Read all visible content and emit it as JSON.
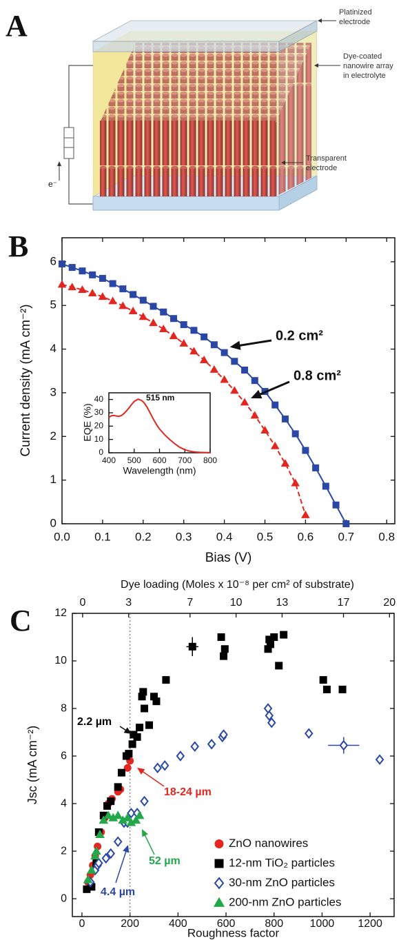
{
  "panel_a": {
    "label": "A",
    "callouts": [
      [
        "Platinized",
        "electrode"
      ],
      [
        "Dye-coated",
        "nanowire array",
        "in electrolyte"
      ],
      [
        "Transparent",
        "electrode"
      ]
    ],
    "electron": "e⁻"
  },
  "chart_data": [
    {
      "type": "line",
      "label": "B",
      "x_label": "Bias (V)",
      "y_label": "Current density (mA cm⁻²)",
      "xlim": [
        0,
        0.82
      ],
      "ylim": [
        0,
        6.55
      ],
      "xticks": [
        {
          "value": 0,
          "label": "0.0"
        },
        0.1,
        0.2,
        0.3,
        0.4,
        0.5,
        0.6,
        0.7,
        0.8
      ],
      "yticks": [
        0,
        1,
        2,
        3,
        4,
        5,
        6
      ],
      "series": [
        {
          "name": "0.2 cm²",
          "color": "#2a47a6",
          "marker": "square",
          "line_style": "solid",
          "x": [
            0,
            0.025,
            0.05,
            0.075,
            0.1,
            0.125,
            0.15,
            0.175,
            0.2,
            0.225,
            0.25,
            0.275,
            0.3,
            0.325,
            0.35,
            0.375,
            0.4,
            0.425,
            0.45,
            0.475,
            0.5,
            0.525,
            0.55,
            0.575,
            0.6,
            0.625,
            0.65,
            0.675,
            0.7
          ],
          "values": [
            5.95,
            5.87,
            5.79,
            5.7,
            5.62,
            5.5,
            5.38,
            5.25,
            5.12,
            4.98,
            4.85,
            4.7,
            4.56,
            4.43,
            4.28,
            4.1,
            3.92,
            3.72,
            3.52,
            3.28,
            3.03,
            2.72,
            2.4,
            2.06,
            1.68,
            1.28,
            0.86,
            0.43,
            0
          ]
        },
        {
          "name": "0.8 cm²",
          "color": "#e3261f",
          "marker": "triangle",
          "line_style": "dashed",
          "x": [
            0,
            0.025,
            0.05,
            0.075,
            0.1,
            0.125,
            0.15,
            0.175,
            0.2,
            0.225,
            0.25,
            0.275,
            0.3,
            0.325,
            0.35,
            0.375,
            0.4,
            0.425,
            0.45,
            0.475,
            0.5,
            0.525,
            0.55,
            0.575,
            0.6
          ],
          "values": [
            5.48,
            5.42,
            5.36,
            5.28,
            5.2,
            5.1,
            4.99,
            4.87,
            4.74,
            4.6,
            4.46,
            4.3,
            4.13,
            3.95,
            3.75,
            3.53,
            3.3,
            3.05,
            2.78,
            2.48,
            2.14,
            1.78,
            1.38,
            0.93,
            0.2
          ]
        }
      ]
    },
    {
      "type": "line",
      "x_label": "Wavelength (nm)",
      "y_label": "EQE (%)",
      "annotation": "515 nm",
      "color": "#e3261f",
      "xlim": [
        400,
        800
      ],
      "ylim": [
        0,
        45
      ],
      "xticks": [
        400,
        500,
        600,
        700,
        800
      ],
      "yticks": [
        0,
        10,
        20,
        30,
        40
      ],
      "x": [
        400,
        410,
        420,
        430,
        440,
        450,
        460,
        470,
        480,
        490,
        500,
        515,
        530,
        540,
        550,
        560,
        570,
        580,
        590,
        600,
        620,
        640,
        660,
        680,
        700,
        720,
        740,
        760,
        780,
        800
      ],
      "values": [
        26.5,
        27.8,
        28,
        27.6,
        27.3,
        28,
        29.5,
        31.5,
        33.8,
        36.3,
        38.5,
        40.2,
        39.2,
        37.3,
        34.5,
        31,
        27.3,
        23.8,
        20.6,
        17.9,
        13.6,
        10,
        6.8,
        4.1,
        2.3,
        1.2,
        0.6,
        0.3,
        0.2,
        0.1
      ]
    },
    {
      "type": "scatter",
      "label": "C",
      "x_label": "Roughness factor",
      "y_label": "Jsc (mA cm⁻²)",
      "x2_label": "Dye loading (Moles x 10⁻⁸ per cm² of substrate)",
      "xlim": [
        -40,
        1300
      ],
      "ylim": [
        -0.75,
        12
      ],
      "x2lim": [
        -0.67,
        20.3
      ],
      "xticks": [
        0,
        200,
        400,
        600,
        800,
        1000,
        1200
      ],
      "yticks": [
        0,
        2,
        4,
        6,
        8,
        10,
        12
      ],
      "x2ticks": [
        0,
        3,
        7,
        10,
        13,
        17,
        20
      ],
      "vline": 200,
      "legend": "lower right",
      "annotations": [
        {
          "text": "2.2 µm",
          "color": "#000000"
        },
        {
          "text": "18-24 µm",
          "color": "#e3261f"
        },
        {
          "text": "52 µm",
          "color": "#22a84a"
        },
        {
          "text": "4.4 µm",
          "color": "#2a47a6"
        }
      ],
      "series": [
        {
          "name": "ZnO nanowires",
          "color": "#e3261f",
          "marker": "circle",
          "filled": true,
          "x": [
            25,
            35,
            45,
            55,
            65,
            80,
            95,
            110,
            125,
            150,
            160,
            190,
            200
          ],
          "values": [
            0.7,
            1.0,
            1.4,
            1.8,
            2.2,
            2.8,
            3.4,
            4.0,
            4.2,
            4.5,
            4.6,
            5.5,
            5.8
          ]
        },
        {
          "name": "12-nm TiO₂ particles",
          "color": "#000000",
          "marker": "square",
          "filled": true,
          "x": [
            20,
            40,
            60,
            70,
            90,
            105,
            120,
            150,
            165,
            185,
            195,
            210,
            215,
            230,
            240,
            250,
            255,
            260,
            280,
            300,
            310,
            350,
            460,
            580,
            590,
            595,
            775,
            780,
            785,
            800,
            820,
            840,
            1005,
            1020,
            1085
          ],
          "values": [
            0.4,
            0.5,
            1.5,
            2.8,
            3.5,
            3.9,
            4.1,
            4.7,
            5.3,
            6.0,
            6.1,
            6.5,
            6.9,
            6.8,
            7.2,
            8.5,
            8.7,
            8.0,
            7.3,
            8.5,
            8.3,
            9.2,
            10.6,
            11.0,
            10.2,
            10.5,
            10.5,
            10.9,
            10.7,
            11.0,
            9.8,
            11.1,
            9.2,
            8.8,
            8.8
          ],
          "xerr": [
            null,
            null,
            null,
            null,
            null,
            null,
            null,
            null,
            null,
            null,
            null,
            null,
            null,
            null,
            null,
            null,
            null,
            null,
            null,
            null,
            null,
            null,
            25,
            null,
            null,
            null,
            null,
            null,
            null,
            null,
            null,
            null,
            null,
            null,
            null
          ],
          "yerr": [
            null,
            null,
            null,
            null,
            null,
            null,
            null,
            null,
            null,
            null,
            null,
            null,
            null,
            null,
            null,
            null,
            null,
            null,
            null,
            null,
            null,
            null,
            0.4,
            null,
            null,
            null,
            null,
            null,
            null,
            null,
            null,
            null,
            null,
            null,
            null
          ]
        },
        {
          "name": "30-nm ZnO particles",
          "color": "#2a47a6",
          "marker": "diamond",
          "filled": false,
          "x": [
            35,
            55,
            65,
            70,
            100,
            120,
            150,
            175,
            190,
            205,
            230,
            260,
            315,
            345,
            410,
            470,
            540,
            585,
            590,
            775,
            780,
            790,
            945,
            1090,
            1240
          ],
          "values": [
            0.7,
            1.2,
            1.4,
            1.5,
            1.7,
            1.9,
            2.4,
            3.2,
            3.2,
            3.6,
            3.6,
            4.1,
            5.5,
            5.6,
            6.0,
            6.4,
            6.5,
            6.8,
            6.9,
            8.0,
            7.7,
            7.4,
            6.95,
            6.45,
            5.85
          ],
          "xerr": [
            null,
            null,
            null,
            null,
            null,
            null,
            null,
            null,
            null,
            null,
            null,
            null,
            null,
            null,
            null,
            null,
            null,
            null,
            null,
            null,
            null,
            null,
            null,
            65,
            null
          ],
          "yerr": [
            null,
            null,
            null,
            null,
            null,
            null,
            null,
            null,
            null,
            null,
            null,
            null,
            null,
            null,
            null,
            null,
            null,
            null,
            null,
            null,
            null,
            null,
            null,
            0.35,
            null
          ]
        },
        {
          "name": "200-nm ZnO particles",
          "color": "#22a84a",
          "marker": "triangle",
          "filled": true,
          "x": [
            25,
            40,
            55,
            60,
            75,
            90,
            110,
            130,
            150,
            170,
            190,
            205,
            225,
            240
          ],
          "values": [
            0.8,
            1.2,
            1.8,
            2.0,
            2.7,
            3.3,
            3.5,
            3.4,
            3.5,
            3.3,
            3.4,
            3.2,
            3.3,
            3.5
          ]
        }
      ]
    }
  ]
}
